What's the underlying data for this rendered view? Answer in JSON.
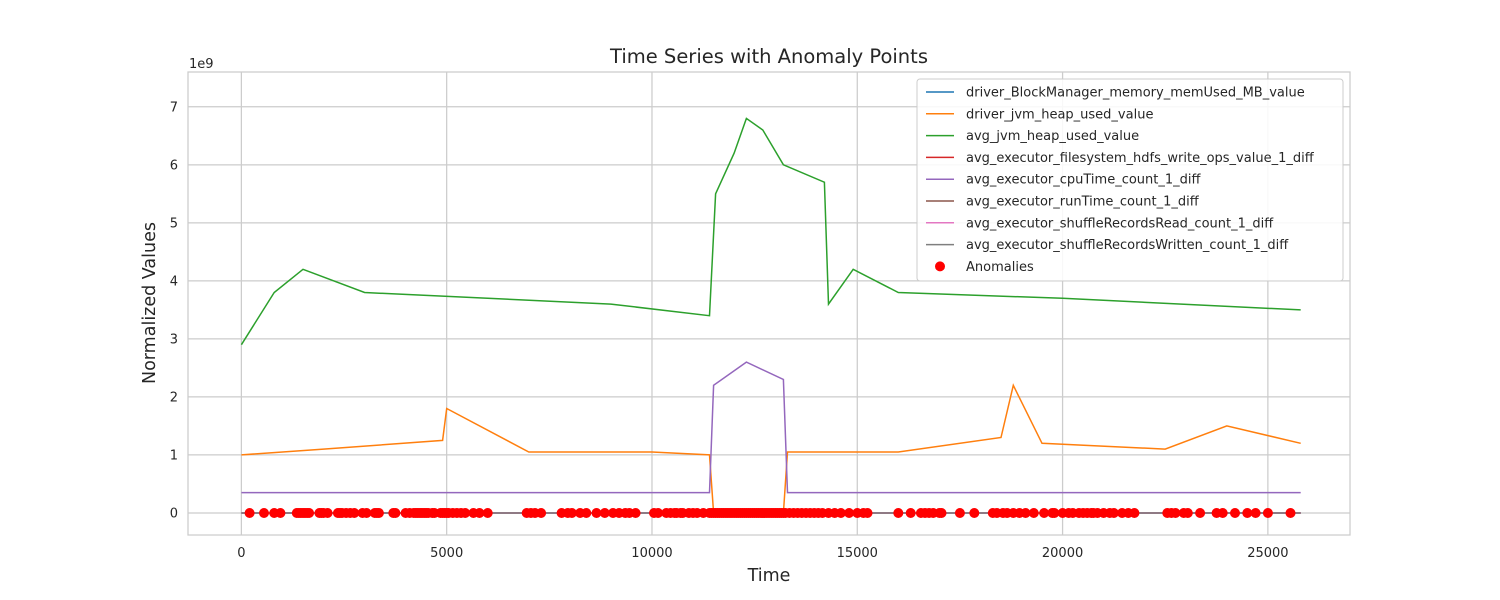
{
  "chart_data": {
    "type": "line",
    "title": "Time Series with Anomaly Points",
    "xlabel": "Time",
    "ylabel": "Normalized Values",
    "y_offset_label": "1e9",
    "xlim": [
      -1300,
      27000
    ],
    "ylim": [
      -0.38,
      7.6
    ],
    "x_ticks": [
      0,
      5000,
      10000,
      15000,
      20000,
      25000
    ],
    "x_tick_labels": [
      "0",
      "5000",
      "10000",
      "15000",
      "20000",
      "25000"
    ],
    "y_ticks": [
      0,
      1,
      2,
      3,
      4,
      5,
      6,
      7
    ],
    "y_tick_labels": [
      "0",
      "1",
      "2",
      "3",
      "4",
      "5",
      "6",
      "7"
    ],
    "grid": true,
    "legend_position": "top-right",
    "series": [
      {
        "name": "driver_BlockManager_memory_memUsed_MB_value",
        "color": "#1f77b4",
        "values": [
          [
            0,
            0.0
          ],
          [
            25800,
            0.0
          ]
        ]
      },
      {
        "name": "driver_jvm_heap_used_value",
        "color": "#ff7f0e",
        "values": [
          [
            0,
            1.0
          ],
          [
            2000,
            1.1
          ],
          [
            4900,
            1.25
          ],
          [
            5000,
            1.8
          ],
          [
            7000,
            1.05
          ],
          [
            10000,
            1.05
          ],
          [
            11400,
            1.0
          ],
          [
            11500,
            0.0
          ],
          [
            13200,
            0.0
          ],
          [
            13300,
            1.05
          ],
          [
            16000,
            1.05
          ],
          [
            18500,
            1.3
          ],
          [
            18800,
            2.2
          ],
          [
            19500,
            1.2
          ],
          [
            22500,
            1.1
          ],
          [
            24000,
            1.5
          ],
          [
            25800,
            1.2
          ]
        ]
      },
      {
        "name": "avg_jvm_heap_used_value",
        "color": "#2ca02c",
        "values": [
          [
            0,
            2.9
          ],
          [
            800,
            3.8
          ],
          [
            1500,
            4.2
          ],
          [
            3000,
            3.8
          ],
          [
            6000,
            3.7
          ],
          [
            9000,
            3.6
          ],
          [
            11400,
            3.4
          ],
          [
            11550,
            5.5
          ],
          [
            12000,
            6.2
          ],
          [
            12300,
            6.8
          ],
          [
            12700,
            6.6
          ],
          [
            13200,
            6.0
          ],
          [
            14200,
            5.7
          ],
          [
            14300,
            3.6
          ],
          [
            14900,
            4.2
          ],
          [
            16000,
            3.8
          ],
          [
            20000,
            3.7
          ],
          [
            25800,
            3.5
          ]
        ]
      },
      {
        "name": "avg_executor_filesystem_hdfs_write_ops_value_1_diff",
        "color": "#d62728",
        "values": [
          [
            0,
            0.0
          ],
          [
            25800,
            0.0
          ]
        ]
      },
      {
        "name": "avg_executor_cpuTime_count_1_diff",
        "color": "#9467bd",
        "values": [
          [
            0,
            0.35
          ],
          [
            11400,
            0.35
          ],
          [
            11500,
            2.2
          ],
          [
            12300,
            2.6
          ],
          [
            13200,
            2.3
          ],
          [
            13300,
            0.35
          ],
          [
            25800,
            0.35
          ]
        ]
      },
      {
        "name": "avg_executor_runTime_count_1_diff",
        "color": "#8c564b",
        "values": [
          [
            0,
            0.0
          ],
          [
            25800,
            0.0
          ]
        ]
      },
      {
        "name": "avg_executor_shuffleRecordsRead_count_1_diff",
        "color": "#e377c2",
        "values": [
          [
            0,
            0.0
          ],
          [
            25800,
            0.0
          ]
        ]
      },
      {
        "name": "avg_executor_shuffleRecordsWritten_count_1_diff",
        "color": "#7f7f7f",
        "values": [
          [
            0,
            0.0
          ],
          [
            25800,
            0.0
          ]
        ]
      }
    ],
    "anomalies": {
      "name": "Anomalies",
      "color": "#ff0000",
      "x": [
        200,
        550,
        800,
        950,
        1350,
        1400,
        1450,
        1500,
        1550,
        1600,
        1650,
        1900,
        1950,
        2000,
        2100,
        2350,
        2400,
        2450,
        2550,
        2650,
        2750,
        2950,
        3050,
        3250,
        3300,
        3350,
        3700,
        3750,
        4000,
        4100,
        4200,
        4250,
        4300,
        4350,
        4400,
        4450,
        4500,
        4550,
        4650,
        4700,
        4850,
        4900,
        4950,
        5000,
        5050,
        5150,
        5250,
        5350,
        5450,
        5650,
        5800,
        6000,
        6950,
        7050,
        7150,
        7300,
        7800,
        7950,
        8050,
        8250,
        8400,
        8650,
        8850,
        9050,
        9200,
        9350,
        9450,
        9600,
        10050,
        10150,
        10350,
        10450,
        10550,
        10600,
        10700,
        10750,
        10900,
        11000,
        11100,
        11250,
        11400,
        11450,
        11500,
        11550,
        11600,
        11650,
        11700,
        11750,
        11800,
        11850,
        11900,
        11950,
        12000,
        12050,
        12100,
        12150,
        12200,
        12250,
        12300,
        12350,
        12400,
        12450,
        12500,
        12550,
        12600,
        12650,
        12700,
        12750,
        12800,
        12850,
        12900,
        12950,
        13000,
        13050,
        13100,
        13150,
        13200,
        13250,
        13350,
        13450,
        13550,
        13650,
        13750,
        13850,
        13950,
        14050,
        14150,
        14300,
        14450,
        14600,
        14800,
        15000,
        15150,
        15250,
        16000,
        16300,
        16550,
        16650,
        16750,
        16850,
        17000,
        17050,
        17500,
        17850,
        18300,
        18400,
        18550,
        18650,
        18800,
        18950,
        19100,
        19300,
        19550,
        19750,
        19800,
        20000,
        20150,
        20250,
        20400,
        20500,
        20600,
        20700,
        20750,
        20850,
        21000,
        21150,
        21250,
        21450,
        21600,
        21750,
        22550,
        22650,
        22750,
        22950,
        23050,
        23350,
        23750,
        23900,
        24200,
        24500,
        24700,
        25000,
        25550
      ],
      "y": 0.0
    }
  }
}
